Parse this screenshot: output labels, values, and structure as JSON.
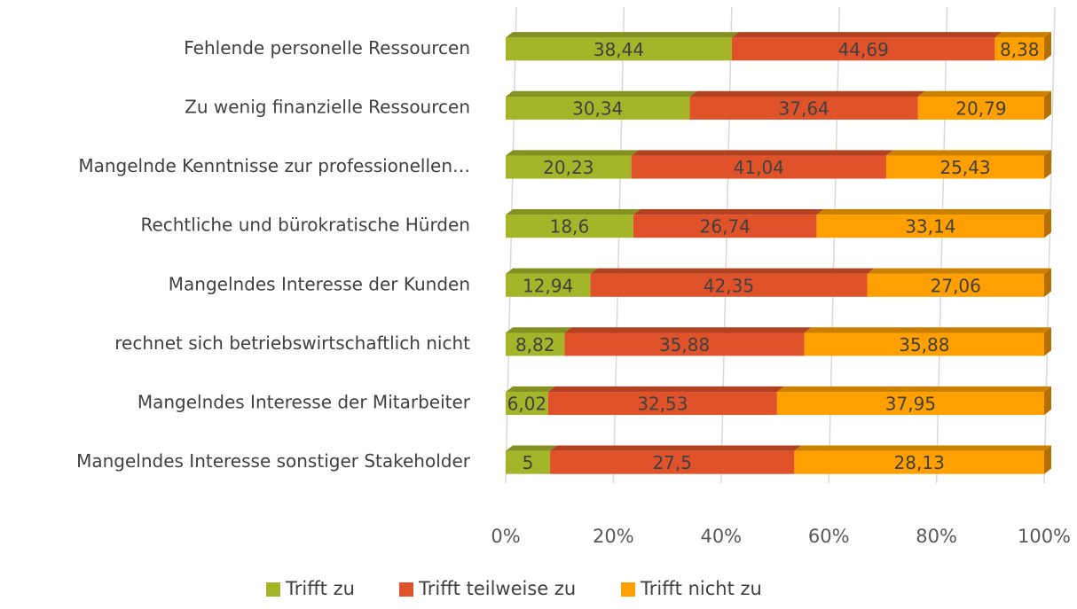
{
  "chart_data": {
    "type": "bar",
    "orientation": "horizontal",
    "stacking": "percent",
    "categories": [
      "Fehlende personelle Ressourcen",
      "Zu wenig finanzielle Ressourcen",
      "Mangelnde Kenntnisse zur professionellen…",
      "Rechtliche und bürokratische Hürden",
      "Mangelndes Interesse der Kunden",
      "rechnet sich betriebswirtschaftlich nicht",
      "Mangelndes Interesse der Mitarbeiter",
      "Mangelndes Interesse sonstiger Stakeholder"
    ],
    "series": [
      {
        "name": "Trifft zu",
        "color": "#a5b52a",
        "values": [
          38.44,
          30.34,
          20.23,
          18.6,
          12.94,
          8.82,
          6.02,
          5
        ],
        "value_labels": [
          "38,44",
          "30,34",
          "20,23",
          "18,6",
          "12,94",
          "8,82",
          "6,02",
          "5"
        ]
      },
      {
        "name": "Trifft teilweise zu",
        "color": "#e0532a",
        "values": [
          44.69,
          37.64,
          41.04,
          26.74,
          42.35,
          35.88,
          32.53,
          27.5
        ],
        "value_labels": [
          "44,69",
          "37,64",
          "41,04",
          "26,74",
          "42,35",
          "35,88",
          "32,53",
          "27,5"
        ]
      },
      {
        "name": "Trifft nicht zu",
        "color": "#ffa000",
        "values": [
          8.38,
          20.79,
          25.43,
          33.14,
          27.06,
          35.88,
          37.95,
          28.13
        ],
        "value_labels": [
          "8,38",
          "20,79",
          "25,43",
          "33,14",
          "27,06",
          "35,88",
          "37,95",
          "28,13"
        ]
      }
    ],
    "xlim": [
      0,
      100
    ],
    "xticks": [
      {
        "value": 0,
        "label": "0%"
      },
      {
        "value": 20,
        "label": "20%"
      },
      {
        "value": 40,
        "label": "40%"
      },
      {
        "value": 60,
        "label": "60%"
      },
      {
        "value": 80,
        "label": "80%"
      },
      {
        "value": 100,
        "label": "100%"
      }
    ],
    "grid": true,
    "legend": "bottom"
  }
}
